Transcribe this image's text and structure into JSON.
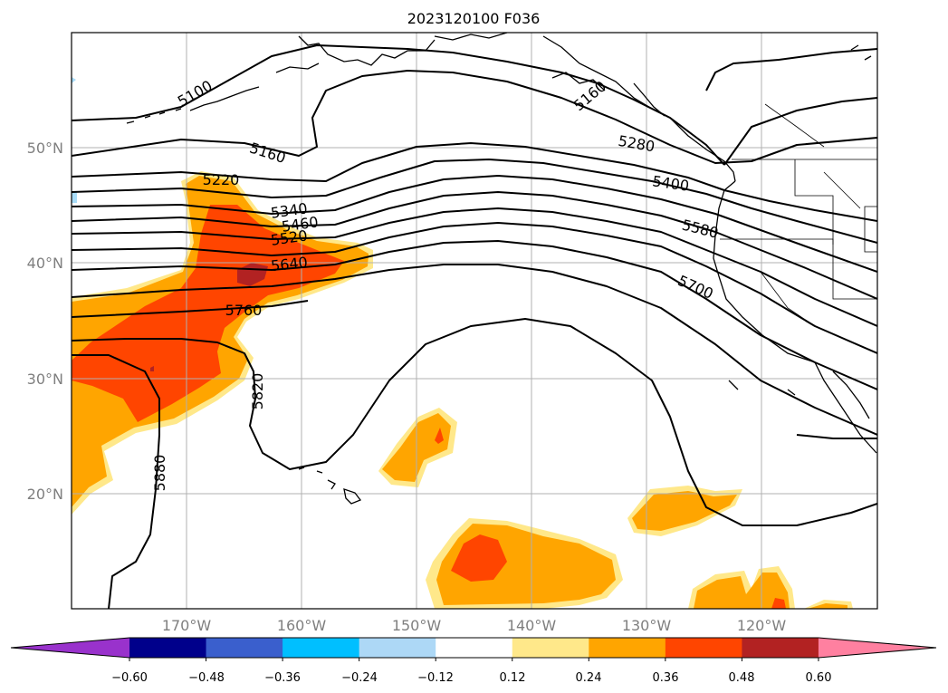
{
  "title": "2023120100 F036",
  "map": {
    "lat_labels": [
      "50°N",
      "40°N",
      "30°N",
      "20°N"
    ],
    "lon_labels": [
      "170°W",
      "160°W",
      "150°W",
      "140°W",
      "130°W",
      "120°W"
    ],
    "contour_labels": [
      "5100",
      "5160",
      "5160",
      "5220",
      "5280",
      "5340",
      "5400",
      "5460",
      "5520",
      "5580",
      "5640",
      "5700",
      "5760",
      "5820",
      "5880"
    ],
    "fill_colors": {
      "light_yellow": "#ffe88a",
      "orange": "#ffa500",
      "red_orange": "#ff4500",
      "dark_red": "#b22222",
      "light_blue": "#a8dcf8"
    }
  },
  "colorbar": {
    "tick_labels": [
      "−0.60",
      "−0.48",
      "−0.36",
      "−0.24",
      "−0.12",
      "0.12",
      "0.24",
      "0.36",
      "0.48",
      "0.60"
    ],
    "colors": [
      "#9932cc",
      "#00008b",
      "#3a5fcd",
      "#00bfff",
      "#add8f6",
      "#ffffff",
      "#ffe88a",
      "#ffa500",
      "#ff4500",
      "#b22222",
      "#ff80a0"
    ]
  }
}
